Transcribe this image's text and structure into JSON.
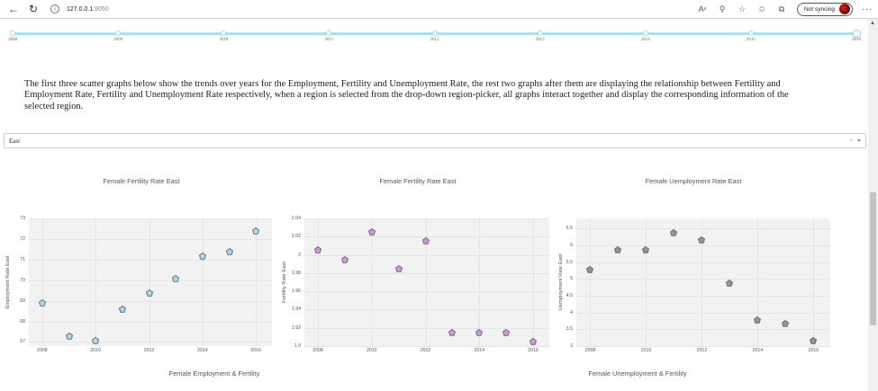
{
  "browser": {
    "url_host": "127.0.0.1",
    "url_port": ":8050",
    "sync_label": "Not syncing",
    "more_label": "···"
  },
  "year_slider": {
    "years": [
      "2008",
      "2009",
      "2010",
      "2011",
      "2012",
      "2013",
      "2014",
      "2015",
      "2016"
    ],
    "selected": "2016",
    "track_color": "#a8dff2"
  },
  "intro_text": "The first three scatter graphs below show the trends over years for the Employment, Fertility and Unemployment Rate, the rest two graphs after them are displaying the relationship between Fertility and Employment Rate, Fertility and Unemployment Rate respectively, when a region is selected from the drop-down region-picker, all graphs interact together and display the corresponding information of the selected region.",
  "region_picker": {
    "value": "East",
    "clear_label": "×"
  },
  "charts": [
    {
      "title": "Female Fertility Rate  East",
      "ylabel": "Employment Rate East",
      "marker_color": "#a6d9ef",
      "xticks": [
        "2008",
        "2010",
        "2012",
        "2014",
        "2016"
      ],
      "yticks": [
        "73",
        "72",
        "71",
        "70",
        "69",
        "68",
        "67"
      ]
    },
    {
      "title": "Female Fertility Rate  East",
      "ylabel": "Fertility Rate East",
      "marker_color": "#e08ee0",
      "xticks": [
        "2008",
        "2010",
        "2012",
        "2014",
        "2016"
      ],
      "yticks": [
        "2.04",
        "2.02",
        "2",
        "1.98",
        "1.96",
        "1.94",
        "1.92",
        "1.9"
      ]
    },
    {
      "title": "Female Uemployment Rate East",
      "ylabel": "Uemployment Rate East",
      "marker_color": "#8a96a0",
      "xticks": [
        "2008",
        "2010",
        "2012",
        "2014",
        "2016"
      ],
      "yticks": [
        "6.5",
        "6",
        "5.5",
        "5",
        "4.5",
        "4",
        "3.5",
        "3"
      ]
    }
  ],
  "bottom_titles": {
    "left": "Female Employment & Fertility",
    "right": "Female Unemployment & Fertility"
  },
  "chart_data": [
    {
      "type": "scatter",
      "title": "Female Fertility Rate  East",
      "xlabel": "",
      "ylabel": "Employment Rate East",
      "x": [
        2008,
        2009,
        2010,
        2011,
        2012,
        2013,
        2014,
        2015,
        2016
      ],
      "y": [
        69.1,
        67.5,
        67.3,
        68.8,
        69.6,
        70.3,
        71.4,
        71.6,
        72.6
      ],
      "ylim": [
        66.8,
        73
      ],
      "xlim": [
        2007.5,
        2016.6
      ],
      "grid": true,
      "marker": "pentagon",
      "color": "#a6d9ef"
    },
    {
      "type": "scatter",
      "title": "Female Fertility Rate  East",
      "xlabel": "",
      "ylabel": "Fertility Rate East",
      "x": [
        2008,
        2009,
        2010,
        2011,
        2012,
        2013,
        2014,
        2015,
        2016
      ],
      "y": [
        2.01,
        2.0,
        2.03,
        1.99,
        2.02,
        1.92,
        1.92,
        1.92,
        1.91
      ],
      "ylim": [
        1.9,
        2.04
      ],
      "xlim": [
        2007.5,
        2016.6
      ],
      "grid": true,
      "marker": "pentagon",
      "color": "#e08ee0"
    },
    {
      "type": "scatter",
      "title": "Female Uemployment Rate East",
      "xlabel": "",
      "ylabel": "Uemployment Rate East",
      "x": [
        2008,
        2009,
        2010,
        2011,
        2012,
        2013,
        2014,
        2015,
        2016
      ],
      "y": [
        5.4,
        6.0,
        6.0,
        6.5,
        6.3,
        5.0,
        3.9,
        3.8,
        3.3
      ],
      "ylim": [
        3,
        6.8
      ],
      "xlim": [
        2007.5,
        2016.6
      ],
      "grid": true,
      "marker": "pentagon",
      "color": "#8a96a0"
    }
  ]
}
